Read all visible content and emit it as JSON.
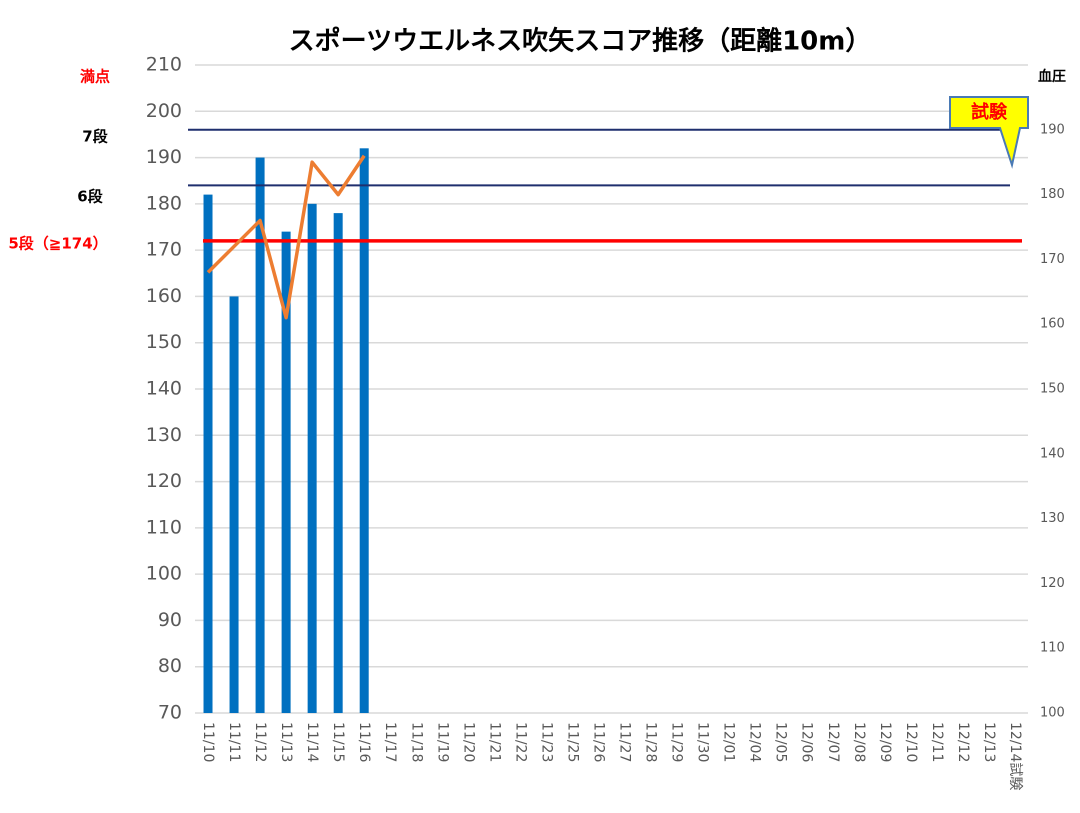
{
  "chart_data": {
    "type": "bar_line",
    "title": "スポーツウエルネス吹矢スコア推移（距離10m）",
    "categories": [
      "11/10",
      "11/11",
      "11/12",
      "11/13",
      "11/14",
      "11/15",
      "11/16",
      "11/17",
      "11/18",
      "11/19",
      "11/20",
      "11/21",
      "11/22",
      "11/23",
      "11/25",
      "11/26",
      "11/27",
      "11/28",
      "11/29",
      "11/30",
      "12/01",
      "12/04",
      "12/05",
      "12/06",
      "12/07",
      "12/08",
      "12/09",
      "12/10",
      "12/11",
      "12/12",
      "12/13",
      "12/14試験"
    ],
    "series": [
      {
        "color": "#0070c0",
        "values": [
          182,
          160,
          190,
          174,
          180,
          178,
          192,
          null,
          null,
          null,
          null,
          null,
          null,
          null,
          null,
          null,
          null,
          null,
          null,
          null,
          null,
          null,
          null,
          null,
          null,
          null,
          null,
          null,
          null,
          null,
          null,
          null
        ]
      },
      {
        "color": "#ed7d31",
        "axis": "y2",
        "values": [
          168,
          172,
          176,
          161,
          185,
          180,
          186,
          null,
          null,
          null,
          null,
          null,
          null,
          null,
          null,
          null,
          null,
          null,
          null,
          null,
          null,
          null,
          null,
          null,
          null,
          null,
          null,
          null,
          null,
          null,
          null,
          null
        ]
      }
    ],
    "ylim": [
      70,
      210
    ],
    "yticks": [
      70,
      80,
      90,
      100,
      110,
      120,
      130,
      140,
      150,
      160,
      170,
      180,
      190,
      200,
      210
    ],
    "y2lim": [
      100,
      200
    ],
    "y2ticks": [
      100,
      110,
      120,
      130,
      140,
      150,
      160,
      170,
      180,
      190
    ],
    "y2label": "血圧",
    "grid": true,
    "reference_lines": [
      {
        "value": 196,
        "color": "#1f2f6e"
      },
      {
        "value": 184,
        "color": "#1f2f6e"
      },
      {
        "value": 172,
        "color": "#ff0000"
      }
    ],
    "side_labels": [
      {
        "text": "満点",
        "color": "#ff0000"
      },
      {
        "text": "7段",
        "color": "#000000"
      },
      {
        "text": "6段",
        "color": "#000000"
      },
      {
        "text": "5段（≧174）",
        "color": "#ff0000"
      }
    ],
    "callout": "試験"
  }
}
